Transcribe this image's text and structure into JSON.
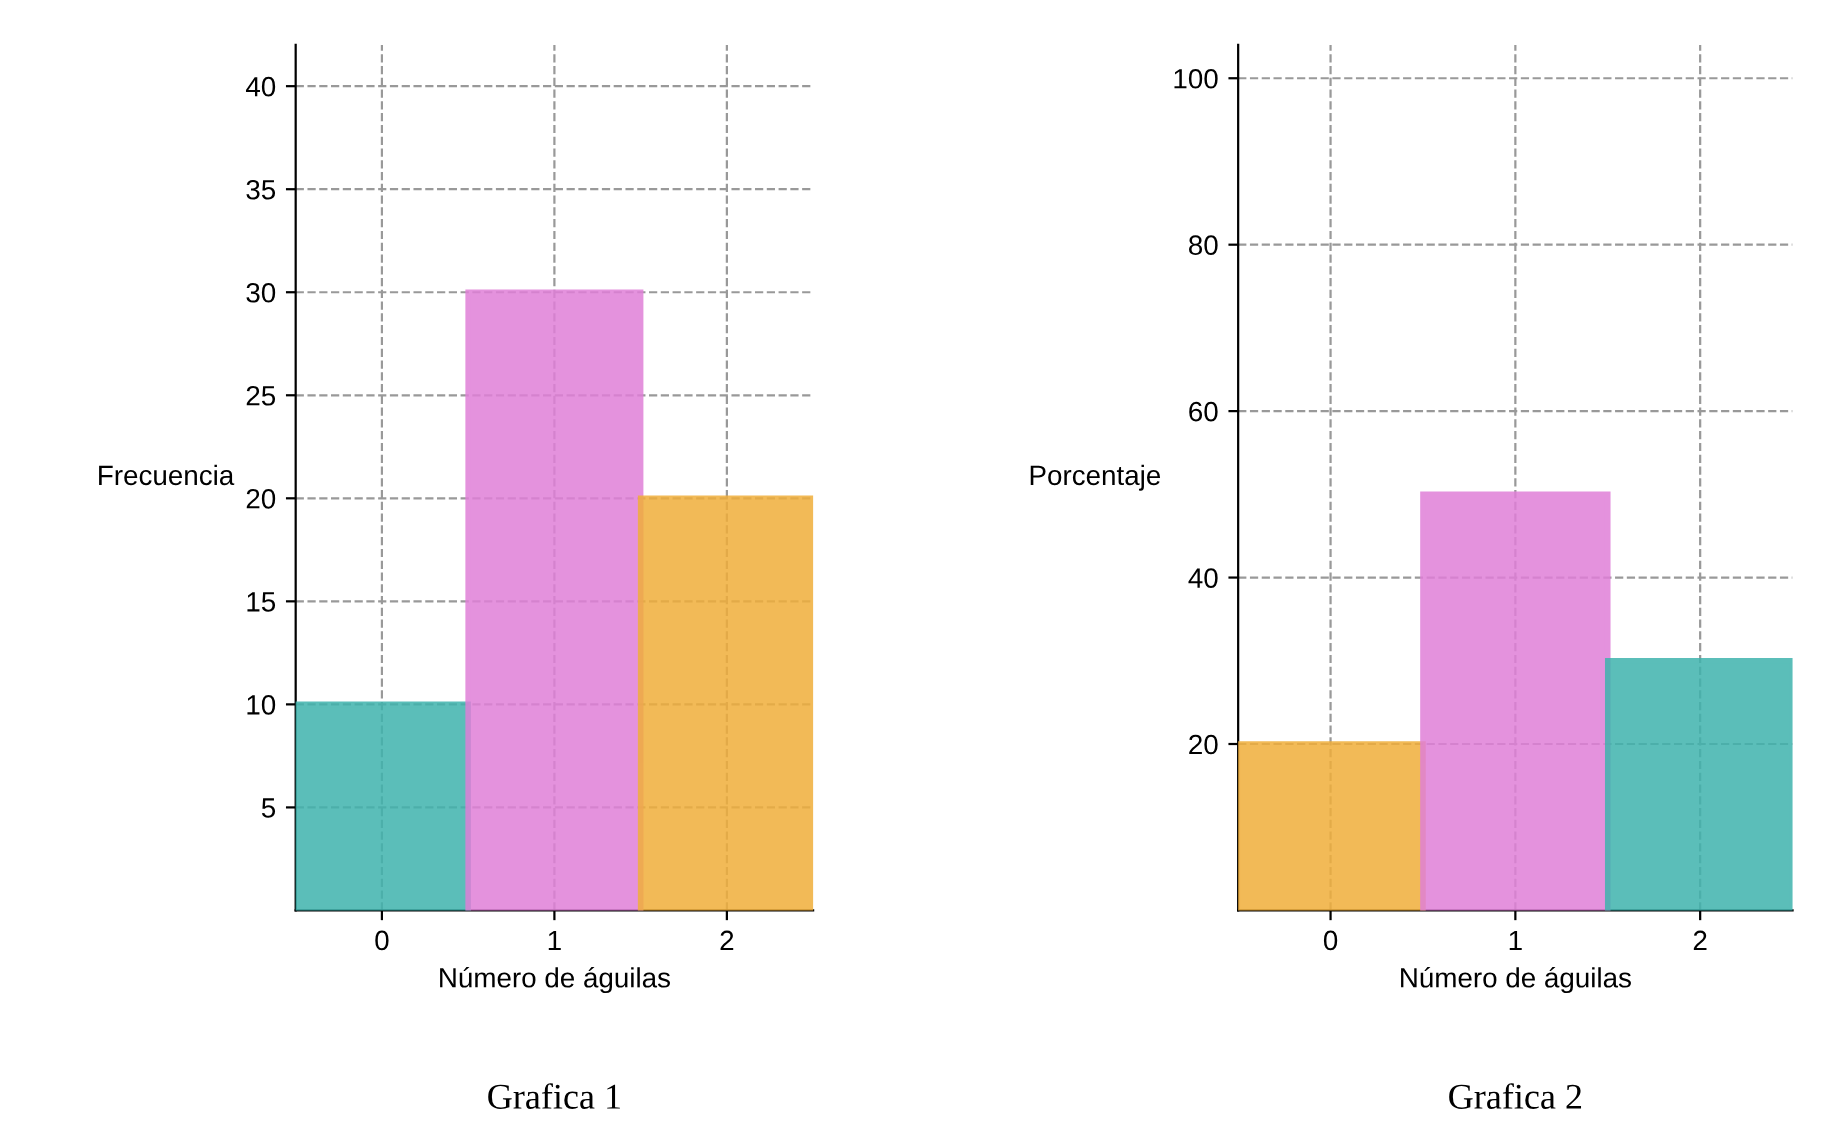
{
  "chart_data": [
    {
      "type": "bar",
      "title": "Grafica 1",
      "xlabel": "Número de águilas",
      "ylabel": "Frecuencia",
      "categories": [
        "0",
        "1",
        "2"
      ],
      "values": [
        10,
        30,
        20
      ],
      "colors": [
        "#3fb3ad",
        "#e07fd8",
        "#f0ae3a"
      ],
      "ylim": [
        0,
        42
      ],
      "yticks": [
        5,
        10,
        15,
        20,
        25,
        30,
        35,
        40
      ],
      "grid": true
    },
    {
      "type": "bar",
      "title": "Grafica 2",
      "xlabel": "Número de águilas",
      "ylabel": "Porcentaje",
      "categories": [
        "0",
        "1",
        "2"
      ],
      "values": [
        20,
        50,
        30
      ],
      "colors": [
        "#f0ae3a",
        "#e07fd8",
        "#3fb3ad"
      ],
      "ylim": [
        0,
        104
      ],
      "yticks": [
        20,
        40,
        60,
        80,
        100
      ],
      "grid": true
    }
  ]
}
